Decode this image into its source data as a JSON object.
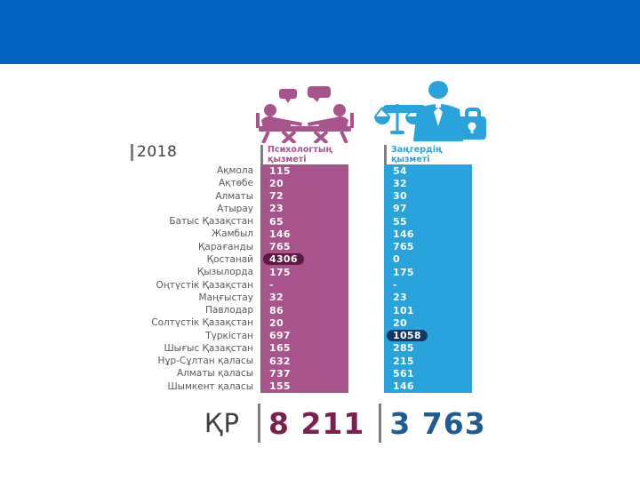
{
  "colors": {
    "topbar": "#0563c1",
    "psych": "#a8538c",
    "lawyer": "#29a3dc",
    "psych_dark": "#5e1a43",
    "lawyer_dark": "#17375e",
    "psych_total": "#7b2150",
    "lawyer_total": "#1d5c94",
    "bar_gray": "#7f7f7f",
    "label_gray": "#595959"
  },
  "header": {
    "year": "2018"
  },
  "icons": {
    "psych": "counseling-table-icon",
    "lawyer": "lawyer-scales-briefcase-icon"
  },
  "chart_data": {
    "type": "table",
    "title": "2018",
    "categories": [
      "Ақмола",
      "Ақтөбе",
      "Алматы",
      "Атырау",
      "Батыс Қазақстан",
      "Жамбыл",
      "Қарағанды",
      "Қостанай",
      "Қызылорда",
      "Оңтүстік Қазақстан",
      "Маңғыстау",
      "Павлодар",
      "Солтүстік Қазақстан",
      "Түркістан",
      "Шығыс Қазақстан",
      "Нұр-Сұлтан қаласы",
      "Алматы қаласы",
      "Шымкент қаласы"
    ],
    "series": [
      {
        "name": "Психологтың қызметі",
        "color": "#a8538c",
        "values": [
          "115",
          "20",
          "72",
          "23",
          "65",
          "146",
          "765",
          "4306",
          "175",
          "-",
          "32",
          "86",
          "20",
          "697",
          "165",
          "632",
          "737",
          "155"
        ],
        "highlighted_index": 7,
        "highlighted_value": "4306",
        "total": "8 211"
      },
      {
        "name": "Заңгердің қызметі",
        "color": "#29a3dc",
        "values": [
          "54",
          "32",
          "30",
          "97",
          "55",
          "146",
          "765",
          "0",
          "175",
          "-",
          "23",
          "101",
          "20",
          "1058",
          "285",
          "215",
          "561",
          "146"
        ],
        "highlighted_index": 13,
        "highlighted_value": "1058",
        "total": "3 763"
      }
    ],
    "footer_label": "ҚР",
    "layout": "two-column infographic table, highlighted max values in dark ovals"
  }
}
